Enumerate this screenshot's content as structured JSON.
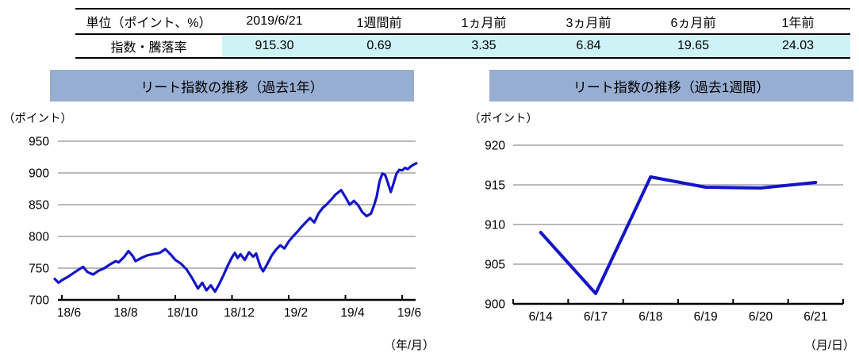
{
  "table": {
    "unit_header": "単位（ポイント、%）",
    "columns": [
      "2019/6/21",
      "1週間前",
      "1ヵ月前",
      "3ヵ月前",
      "6ヵ月前",
      "1年前"
    ],
    "row_label": "指数・騰落率",
    "values": [
      "915.30",
      "0.69",
      "3.35",
      "6.84",
      "19.65",
      "24.03"
    ],
    "highlight_color": "#cdf3f6"
  },
  "chart_data": [
    {
      "type": "line",
      "title": "リート指数の推移（過去1年）",
      "unit_label": "（ポイント）",
      "xlabel": "（年/月）",
      "x_ticks": [
        "18/6",
        "18/8",
        "18/10",
        "18/12",
        "19/2",
        "19/4",
        "19/6"
      ],
      "y_ticks": [
        950,
        900,
        850,
        800,
        750,
        700
      ],
      "ylim": [
        700,
        950
      ],
      "line_color": "#1414c8",
      "x_months": [
        -0.25,
        -0.12,
        0,
        0.2,
        0.4,
        0.6,
        0.75,
        0.9,
        1.1,
        1.3,
        1.5,
        1.7,
        1.9,
        2.0,
        2.2,
        2.35,
        2.5,
        2.6,
        2.8,
        3.0,
        3.2,
        3.45,
        3.65,
        3.85,
        4.0,
        4.2,
        4.4,
        4.6,
        4.8,
        4.95,
        5.1,
        5.25,
        5.4,
        5.55,
        5.7,
        5.85,
        6.0,
        6.1,
        6.2,
        6.3,
        6.45,
        6.6,
        6.75,
        6.85,
        7.0,
        7.1,
        7.25,
        7.4,
        7.55,
        7.7,
        7.85,
        8.0,
        8.15,
        8.3,
        8.45,
        8.6,
        8.75,
        8.9,
        9.05,
        9.2,
        9.35,
        9.5,
        9.65,
        9.85,
        10.0,
        10.15,
        10.3,
        10.45,
        10.6,
        10.75,
        10.9,
        11.0,
        11.1,
        11.2,
        11.3,
        11.4,
        11.5,
        11.6,
        11.7,
        11.8,
        11.9,
        12.0,
        12.1,
        12.2,
        12.3,
        12.4,
        12.5
      ],
      "values": [
        733,
        727,
        731,
        736,
        742,
        748,
        752,
        744,
        740,
        746,
        750,
        756,
        761,
        759,
        768,
        777,
        769,
        761,
        766,
        770,
        772,
        774,
        780,
        771,
        763,
        757,
        748,
        734,
        718,
        727,
        715,
        723,
        713,
        725,
        739,
        754,
        767,
        774,
        766,
        772,
        763,
        775,
        768,
        773,
        752,
        745,
        757,
        770,
        779,
        786,
        781,
        792,
        800,
        807,
        815,
        822,
        829,
        822,
        836,
        845,
        851,
        858,
        866,
        873,
        862,
        850,
        856,
        849,
        838,
        832,
        836,
        848,
        862,
        886,
        899,
        897,
        884,
        870,
        884,
        899,
        905,
        904,
        908,
        906,
        910,
        913,
        915.3
      ]
    },
    {
      "type": "line",
      "title": "リート指数の推移（過去1週間）",
      "unit_label": "（ポイント）",
      "xlabel": "（月/日）",
      "categories": [
        "6/14",
        "6/17",
        "6/18",
        "6/19",
        "6/20",
        "6/21"
      ],
      "values": [
        909.0,
        901.3,
        916.0,
        914.7,
        914.6,
        915.3
      ],
      "y_ticks": [
        920,
        915,
        910,
        905,
        900
      ],
      "ylim": [
        900,
        920
      ],
      "line_color": "#1414c8"
    }
  ],
  "styles": {
    "banner_color": "#97aed2",
    "grid_color": "#a3a3a3",
    "axis_color": "#000000"
  }
}
